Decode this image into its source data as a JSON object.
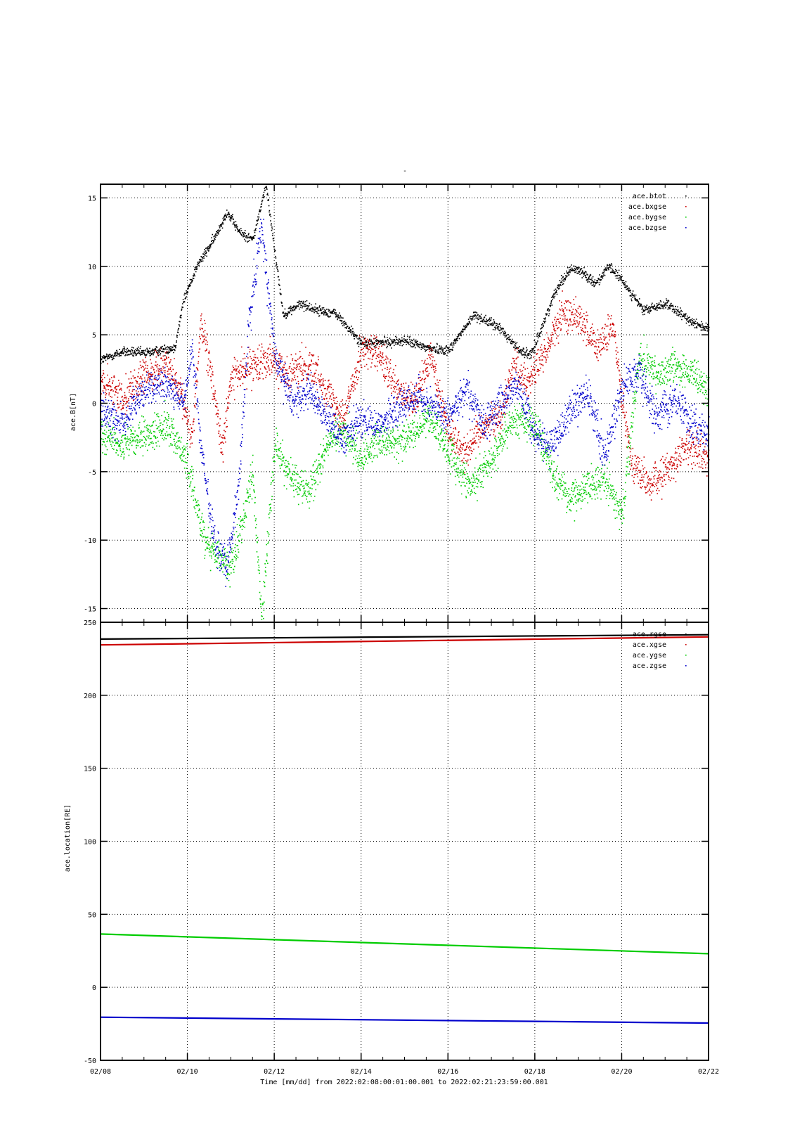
{
  "figure": {
    "title": "-",
    "xlabel": "Time [mm/dd]  from 2022:02:08:00:01:00.001  to  2022:02:21:23:59:00.001"
  },
  "chart_data": [
    {
      "type": "scatter",
      "ylabel": "ace.B[nT]",
      "xlim": [
        "02/08",
        "02/22"
      ],
      "ylim": [
        -16,
        16
      ],
      "x_ticks": [
        "02/08",
        "02/10",
        "02/12",
        "02/14",
        "02/16",
        "02/18",
        "02/20",
        "02/22"
      ],
      "y_ticks": [
        -15,
        -10,
        -5,
        0,
        5,
        10,
        15
      ],
      "grid": true,
      "legend_position": "top-right",
      "series": [
        {
          "name": "ace.btot",
          "color": "#000000",
          "x_days": [
            0.0,
            0.5,
            1.0,
            1.7,
            1.9,
            2.2,
            2.6,
            2.9,
            3.2,
            3.5,
            3.8,
            4.2,
            4.6,
            5.0,
            5.4,
            6.0,
            6.6,
            7.0,
            7.5,
            8.0,
            8.6,
            9.2,
            9.6,
            9.9,
            10.5,
            10.8,
            11.0,
            11.4,
            11.7,
            12.0,
            12.5,
            13.0,
            13.5,
            14.0
          ],
          "values": [
            3.2,
            3.8,
            3.7,
            4.1,
            7.5,
            10.0,
            12.0,
            14.0,
            12.5,
            12.0,
            16.0,
            6.5,
            7.3,
            6.8,
            6.6,
            4.4,
            4.5,
            4.6,
            4.1,
            3.9,
            6.5,
            5.5,
            4.0,
            3.5,
            8.5,
            9.8,
            9.8,
            8.8,
            10.0,
            9.0,
            6.8,
            7.3,
            6.2,
            5.4
          ]
        },
        {
          "name": "ace.bxgse",
          "color": "#cc0000",
          "x_days": [
            0.0,
            0.5,
            1.0,
            1.5,
            1.9,
            2.1,
            2.3,
            2.6,
            2.8,
            3.0,
            3.3,
            3.6,
            3.9,
            4.3,
            4.8,
            5.2,
            5.6,
            6.0,
            6.4,
            6.8,
            7.2,
            7.6,
            8.0,
            8.4,
            8.8,
            9.2,
            9.5,
            9.8,
            10.2,
            10.6,
            11.0,
            11.4,
            11.8,
            12.2,
            12.6,
            13.0,
            13.5,
            14.0
          ],
          "values": [
            1.5,
            0.5,
            2.0,
            3.0,
            0.0,
            -2.5,
            6.0,
            1.0,
            -3.5,
            2.0,
            2.5,
            3.0,
            3.5,
            2.0,
            3.0,
            1.0,
            -1.0,
            4.0,
            3.5,
            1.0,
            0.0,
            3.5,
            -2.0,
            -3.5,
            -1.5,
            -1.0,
            3.0,
            1.5,
            3.5,
            6.5,
            6.5,
            4.0,
            5.5,
            -4.0,
            -6.0,
            -5.0,
            -3.0,
            -4.0
          ]
        },
        {
          "name": "ace.bygse",
          "color": "#00cc00",
          "x_days": [
            0.0,
            0.5,
            1.0,
            1.5,
            1.9,
            2.1,
            2.4,
            2.7,
            3.0,
            3.3,
            3.5,
            3.7,
            4.0,
            4.4,
            4.8,
            5.2,
            5.6,
            6.0,
            6.4,
            6.8,
            7.2,
            7.6,
            8.0,
            8.5,
            9.0,
            9.5,
            10.0,
            10.4,
            10.8,
            11.2,
            11.6,
            12.0,
            12.4,
            12.8,
            13.2,
            13.6,
            14.0
          ],
          "values": [
            -2.0,
            -3.0,
            -2.5,
            -1.5,
            -3.5,
            -6.0,
            -10.0,
            -11.0,
            -12.0,
            -8.0,
            -5.0,
            -16.0,
            -3.0,
            -5.5,
            -6.5,
            -3.0,
            -2.0,
            -4.0,
            -2.5,
            -3.0,
            -2.0,
            -1.0,
            -3.5,
            -6.0,
            -4.0,
            -1.0,
            -1.5,
            -5.0,
            -7.0,
            -6.0,
            -5.5,
            -8.0,
            3.5,
            2.0,
            3.0,
            2.0,
            1.0
          ]
        },
        {
          "name": "ace.bzgse",
          "color": "#0000cc",
          "x_days": [
            0.0,
            0.5,
            1.0,
            1.5,
            1.9,
            2.1,
            2.3,
            2.6,
            2.9,
            3.2,
            3.4,
            3.7,
            4.0,
            4.4,
            4.8,
            5.2,
            5.6,
            6.0,
            6.4,
            6.8,
            7.2,
            7.6,
            8.0,
            8.4,
            8.8,
            9.2,
            9.6,
            10.0,
            10.4,
            10.8,
            11.2,
            11.6,
            12.0,
            12.4,
            12.8,
            13.2,
            13.6,
            14.0
          ],
          "values": [
            -0.5,
            -1.5,
            1.0,
            1.5,
            0.0,
            4.0,
            -3.0,
            -10.0,
            -12.0,
            -5.0,
            6.0,
            13.0,
            3.5,
            0.0,
            1.0,
            -1.0,
            -2.5,
            -1.0,
            -1.5,
            -0.5,
            0.5,
            0.0,
            -1.0,
            1.0,
            -1.5,
            0.0,
            1.5,
            -2.5,
            -3.0,
            -0.5,
            1.0,
            -4.0,
            1.5,
            2.0,
            -1.0,
            0.5,
            -1.5,
            -2.5
          ]
        }
      ]
    },
    {
      "type": "line",
      "ylabel": "ace.location[RE]",
      "xlim": [
        "02/08",
        "02/22"
      ],
      "ylim": [
        -50,
        250
      ],
      "x_ticks": [
        "02/08",
        "02/10",
        "02/12",
        "02/14",
        "02/16",
        "02/18",
        "02/20",
        "02/22"
      ],
      "y_ticks": [
        -50,
        0,
        50,
        100,
        150,
        200,
        250
      ],
      "grid": true,
      "legend_position": "top-right",
      "series": [
        {
          "name": "ace.rgse",
          "color": "#000000",
          "x_days": [
            0,
            14
          ],
          "values": [
            238.5,
            241.5
          ]
        },
        {
          "name": "ace.xgse",
          "color": "#cc0000",
          "x_days": [
            0,
            14
          ],
          "values": [
            234.5,
            240.0
          ]
        },
        {
          "name": "ace.ygse",
          "color": "#00cc00",
          "x_days": [
            0,
            14
          ],
          "values": [
            36.5,
            23.0
          ]
        },
        {
          "name": "ace.zgse",
          "color": "#0000cc",
          "x_days": [
            0,
            14
          ],
          "values": [
            -20.5,
            -24.5
          ]
        }
      ]
    }
  ]
}
